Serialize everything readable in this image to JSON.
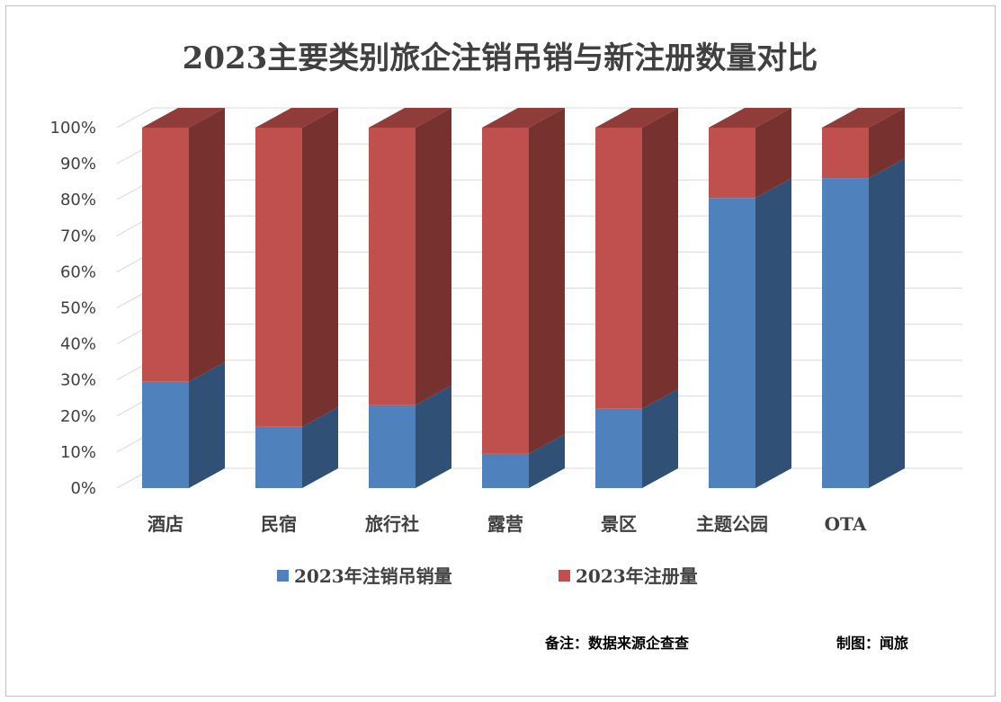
{
  "chart_data": {
    "type": "bar",
    "stacked": "percent",
    "style": "3d",
    "title": "2023主要类别旅企注销吊销与新注册数量对比",
    "categories": [
      "酒店",
      "民宿",
      "旅行社",
      "露营",
      "景区",
      "主题公园",
      "OTA"
    ],
    "series": [
      {
        "name": "2023年注销吊销量",
        "color": "#4f81bd",
        "values": [
          29.5,
          17,
          23,
          9.5,
          22,
          80.5,
          86
        ]
      },
      {
        "name": "2023年注册量",
        "color": "#c0504d",
        "values": [
          70.5,
          83,
          77,
          90.5,
          78,
          19.5,
          14
        ]
      }
    ],
    "ylim": [
      0,
      100
    ],
    "yticks": [
      "0%",
      "10%",
      "20%",
      "30%",
      "40%",
      "50%",
      "60%",
      "70%",
      "80%",
      "90%",
      "100%"
    ],
    "grid": true,
    "legend": "bottom"
  },
  "notes": {
    "source": "备注：数据来源企查查",
    "credit": "制图：闻旅"
  }
}
